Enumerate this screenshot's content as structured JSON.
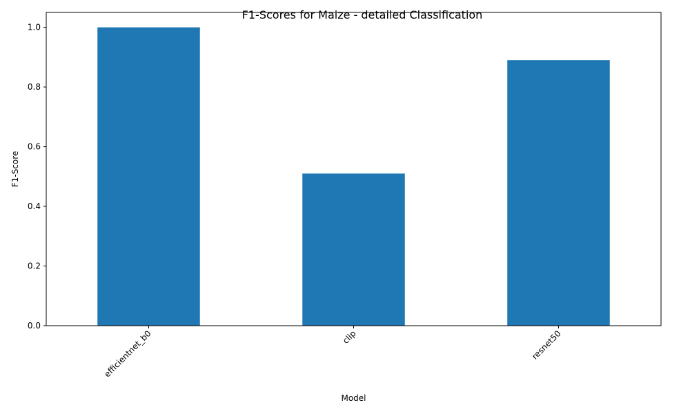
{
  "chart_data": {
    "type": "bar",
    "title": "F1-Scores for Maize - detailed Classification",
    "xlabel": "Model",
    "ylabel": "F1-Score",
    "categories": [
      "efficientnet_b0",
      "clip",
      "resnet50"
    ],
    "values": [
      1.0,
      0.51,
      0.89
    ],
    "ylim": [
      0,
      1.05
    ],
    "yticks": [
      "0.0",
      "0.2",
      "0.4",
      "0.6",
      "0.8",
      "1.0"
    ],
    "bar_color": "#1f77b4",
    "grid": false,
    "legend": "none"
  }
}
